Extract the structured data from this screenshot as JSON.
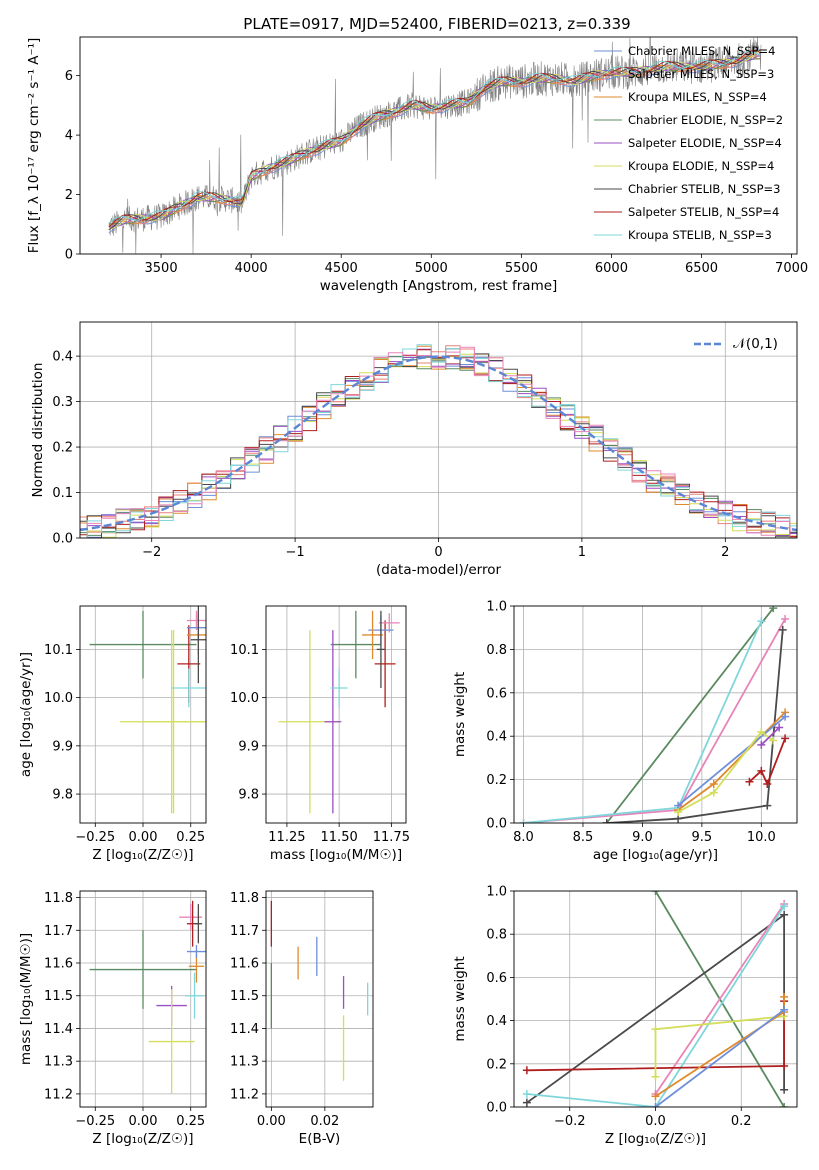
{
  "title": "PLATE=0917, MJD=52400, FIBERID=0213, z=0.339",
  "colors": [
    "#6f8fd8",
    "#e8807a",
    "#e08a2e",
    "#5a8a60",
    "#9b4fc4",
    "#d4de5a",
    "#4a4a4a",
    "#b01f1f",
    "#7fd6dc",
    "#e884b8"
  ],
  "chart_data": [
    {
      "id": "spectrum",
      "type": "line",
      "title": "PLATE=0917, MJD=52400, FIBERID=0213, z=0.339",
      "xlabel": "wavelength [Angstrom, rest frame]",
      "ylabel": "Flux [f_λ 10⁻¹⁷ erg cm⁻² s⁻¹ A⁻¹]",
      "xlim": [
        3050,
        7030
      ],
      "ylim": [
        0,
        7.3
      ],
      "xticks": [
        3500,
        4000,
        4500,
        5000,
        5500,
        6000,
        6500,
        7000
      ],
      "yticks": [
        0,
        2,
        4,
        6
      ],
      "legend": [
        "Chabrier MILES, N_SSP=4",
        "Salpeter MILES, N_SSP=3",
        "Kroupa MILES, N_SSP=4",
        "Chabrier ELODIE, N_SSP=2",
        "Salpeter ELODIE, N_SSP=4",
        "Kroupa ELODIE, N_SSP=4",
        "Chabrier STELIB, N_SSP=3",
        "Salpeter STELIB, N_SSP=4",
        "Kroupa STELIB, N_SSP=3"
      ],
      "legend_loc": "upper-right",
      "continuum": [
        [
          3210,
          0.9
        ],
        [
          3300,
          1.15
        ],
        [
          3400,
          1.2
        ],
        [
          3500,
          1.25
        ],
        [
          3600,
          1.6
        ],
        [
          3700,
          1.9
        ],
        [
          3800,
          1.9
        ],
        [
          3900,
          1.8
        ],
        [
          3950,
          1.7
        ],
        [
          4000,
          2.6
        ],
        [
          4100,
          2.9
        ],
        [
          4200,
          3.1
        ],
        [
          4300,
          3.4
        ],
        [
          4400,
          3.6
        ],
        [
          4500,
          3.8
        ],
        [
          4600,
          4.3
        ],
        [
          4700,
          4.6
        ],
        [
          4800,
          4.8
        ],
        [
          4900,
          5.0
        ],
        [
          5000,
          4.9
        ],
        [
          5100,
          5.0
        ],
        [
          5200,
          5.1
        ],
        [
          5300,
          5.6
        ],
        [
          5400,
          5.8
        ],
        [
          5500,
          5.8
        ],
        [
          5600,
          5.9
        ],
        [
          5700,
          5.9
        ],
        [
          5800,
          5.8
        ],
        [
          5900,
          6.0
        ],
        [
          6000,
          6.1
        ],
        [
          6100,
          6.1
        ],
        [
          6200,
          6.2
        ],
        [
          6300,
          6.3
        ],
        [
          6400,
          6.3
        ],
        [
          6500,
          6.3
        ],
        [
          6600,
          6.4
        ],
        [
          6700,
          6.5
        ],
        [
          6800,
          6.7
        ]
      ]
    },
    {
      "id": "residuals",
      "type": "histogram",
      "xlabel": "(data-model)/error",
      "ylabel": "Normed distribution",
      "xlim": [
        -2.5,
        2.5
      ],
      "ylim": [
        0,
        0.475
      ],
      "xticks": [
        -2,
        -1,
        0,
        1,
        2
      ],
      "yticks": [
        0.0,
        0.1,
        0.2,
        0.3,
        0.4
      ],
      "grid": true,
      "legend": [
        "𝒩(0,1)"
      ],
      "legend_loc": "upper-right",
      "reference": "normal(0,1)"
    },
    {
      "id": "age_vs_Z",
      "type": "errorbar",
      "xlabel": "Z [log₁₀(Z/Z☉)]",
      "ylabel": "age [log₁₀(age/yr)]",
      "xlim": [
        -0.33,
        0.33
      ],
      "ylim": [
        9.74,
        10.19
      ],
      "xticks": [
        -0.25,
        0.0,
        0.25
      ],
      "yticks": [
        9.8,
        9.9,
        10.0,
        10.1
      ],
      "grid": true,
      "points": [
        {
          "x": 0.0,
          "y": 10.11,
          "xerr": 0.28,
          "yerr": 0.07,
          "c": 3
        },
        {
          "x": 0.15,
          "y": 9.95,
          "xerr": 0.27,
          "yerr": 0.19,
          "c": 5
        },
        {
          "x": 0.24,
          "y": 10.07,
          "xerr": 0.06,
          "yerr": 0.08,
          "c": 7
        },
        {
          "x": 0.28,
          "y": 10.16,
          "xerr": 0.05,
          "yerr": 0.02,
          "c": 9
        },
        {
          "x": 0.29,
          "y": 10.145,
          "xerr": 0.06,
          "yerr": 0.03,
          "c": 0
        },
        {
          "x": 0.29,
          "y": 10.13,
          "xerr": 0.06,
          "yerr": 0.04,
          "c": 2
        },
        {
          "x": 0.29,
          "y": 10.12,
          "xerr": 0.04,
          "yerr": 0.09,
          "c": 6
        },
        {
          "x": 0.24,
          "y": 10.02,
          "xerr": 0.09,
          "yerr": 0.04,
          "c": 8
        },
        {
          "x": 0.16,
          "y": 9.95,
          "xerr": 0.16,
          "yerr": 0.19,
          "c": 5
        }
      ]
    },
    {
      "id": "age_vs_mass",
      "type": "errorbar",
      "xlabel": "mass [log₁₀(M/M☉)]",
      "ylabel": "",
      "xlim": [
        11.15,
        11.82
      ],
      "ylim": [
        9.74,
        10.19
      ],
      "xticks": [
        11.25,
        11.5,
        11.75
      ],
      "yticks": [
        9.8,
        9.9,
        10.0,
        10.1
      ],
      "grid": true,
      "points": [
        {
          "x": 11.58,
          "y": 10.11,
          "xerr": 0.12,
          "yerr": 0.07,
          "c": 3
        },
        {
          "x": 11.36,
          "y": 9.95,
          "xerr": 0.15,
          "yerr": 0.19,
          "c": 5
        },
        {
          "x": 11.47,
          "y": 9.95,
          "xerr": 0.04,
          "yerr": 0.19,
          "c": 4
        },
        {
          "x": 11.72,
          "y": 10.07,
          "xerr": 0.05,
          "yerr": 0.09,
          "c": 7
        },
        {
          "x": 11.74,
          "y": 10.155,
          "xerr": 0.05,
          "yerr": 0.02,
          "c": 9
        },
        {
          "x": 11.7,
          "y": 10.14,
          "xerr": 0.06,
          "yerr": 0.03,
          "c": 0
        },
        {
          "x": 11.66,
          "y": 10.13,
          "xerr": 0.05,
          "yerr": 0.05,
          "c": 2
        },
        {
          "x": 11.5,
          "y": 10.02,
          "xerr": 0.04,
          "yerr": 0.04,
          "c": 8
        },
        {
          "x": 11.7,
          "y": 10.1,
          "xerr": 0.02,
          "yerr": 0.08,
          "c": 6
        }
      ]
    },
    {
      "id": "mw_vs_age",
      "type": "line",
      "xlabel": "age [log₁₀(age/yr)]",
      "ylabel": "mass weight",
      "xlim": [
        7.92,
        10.3
      ],
      "ylim": [
        0,
        1
      ],
      "xticks": [
        8.0,
        8.5,
        9.0,
        9.5,
        10.0
      ],
      "yticks": [
        0.0,
        0.2,
        0.4,
        0.6,
        0.8,
        1.0
      ],
      "grid": true,
      "series": [
        {
          "c": 3,
          "pts": [
            [
              8.7,
              0.0
            ],
            [
              10.1,
              0.99
            ]
          ]
        },
        {
          "c": 9,
          "pts": [
            [
              8.0,
              0.0
            ],
            [
              9.3,
              0.06
            ],
            [
              10.2,
              0.94
            ]
          ]
        },
        {
          "c": 8,
          "pts": [
            [
              8.0,
              0.0
            ],
            [
              9.3,
              0.07
            ],
            [
              10.0,
              0.93
            ]
          ]
        },
        {
          "c": 6,
          "pts": [
            [
              8.7,
              0.0
            ],
            [
              9.3,
              0.02
            ],
            [
              10.05,
              0.08
            ],
            [
              10.18,
              0.89
            ]
          ]
        },
        {
          "c": 2,
          "pts": [
            [
              9.3,
              0.06
            ],
            [
              9.6,
              0.18
            ],
            [
              10.2,
              0.51
            ]
          ]
        },
        {
          "c": 0,
          "pts": [
            [
              9.3,
              0.08
            ],
            [
              10.2,
              0.49
            ]
          ]
        },
        {
          "c": 5,
          "pts": [
            [
              9.3,
              0.05
            ],
            [
              9.6,
              0.14
            ],
            [
              10.0,
              0.42
            ],
            [
              10.1,
              0.38
            ]
          ]
        },
        {
          "c": 7,
          "pts": [
            [
              9.9,
              0.19
            ],
            [
              10.0,
              0.24
            ],
            [
              10.05,
              0.18
            ],
            [
              10.2,
              0.39
            ]
          ]
        },
        {
          "c": 4,
          "pts": [
            [
              10.0,
              0.36
            ],
            [
              10.15,
              0.44
            ]
          ]
        }
      ]
    },
    {
      "id": "mass_vs_Z",
      "type": "errorbar",
      "xlabel": "Z [log₁₀(Z/Z☉)]",
      "ylabel": "mass [log₁₀(M/M☉)]",
      "xlim": [
        -0.33,
        0.33
      ],
      "ylim": [
        11.16,
        11.82
      ],
      "xticks": [
        -0.25,
        0.0,
        0.25
      ],
      "yticks": [
        11.2,
        11.3,
        11.4,
        11.5,
        11.6,
        11.7,
        11.8
      ],
      "grid": true,
      "points": [
        {
          "x": 0.0,
          "y": 11.58,
          "xerr": 0.28,
          "yerr": 0.12,
          "c": 3
        },
        {
          "x": 0.15,
          "y": 11.47,
          "xerr": 0.08,
          "yerr": 0.06,
          "c": 4
        },
        {
          "x": 0.15,
          "y": 11.36,
          "xerr": 0.12,
          "yerr": 0.16,
          "c": 5
        },
        {
          "x": 0.28,
          "y": 11.59,
          "xerr": 0.04,
          "yerr": 0.05,
          "c": 2
        },
        {
          "x": 0.28,
          "y": 11.635,
          "xerr": 0.05,
          "yerr": 0.02,
          "c": 0
        },
        {
          "x": 0.25,
          "y": 11.74,
          "xerr": 0.06,
          "yerr": 0.04,
          "c": 9
        },
        {
          "x": 0.26,
          "y": 11.72,
          "xerr": 0.03,
          "yerr": 0.07,
          "c": 7
        },
        {
          "x": 0.27,
          "y": 11.5,
          "xerr": 0.05,
          "yerr": 0.07,
          "c": 8
        },
        {
          "x": 0.29,
          "y": 11.72,
          "xerr": 0.02,
          "yerr": 0.06,
          "c": 6
        }
      ]
    },
    {
      "id": "mass_vs_ebv",
      "type": "errorbar",
      "xlabel": "E(B-V)",
      "ylabel": "",
      "xlim": [
        -0.002,
        0.038
      ],
      "ylim": [
        11.16,
        11.82
      ],
      "xticks": [
        0.0,
        0.02
      ],
      "yticks": [
        11.2,
        11.3,
        11.4,
        11.5,
        11.6,
        11.7,
        11.8
      ],
      "grid": true,
      "points": [
        {
          "x": 0.0,
          "y": 11.72,
          "xerr": 0,
          "yerr": 0.07,
          "c": 7
        },
        {
          "x": 0.0,
          "y": 11.5,
          "xerr": 0,
          "yerr": 0.1,
          "c": 3
        },
        {
          "x": 0.01,
          "y": 11.6,
          "xerr": 0,
          "yerr": 0.05,
          "c": 2
        },
        {
          "x": 0.017,
          "y": 11.62,
          "xerr": 0,
          "yerr": 0.06,
          "c": 0
        },
        {
          "x": 0.027,
          "y": 11.51,
          "xerr": 0,
          "yerr": 0.05,
          "c": 4
        },
        {
          "x": 0.027,
          "y": 11.34,
          "xerr": 0,
          "yerr": 0.1,
          "c": 5
        },
        {
          "x": 0.036,
          "y": 11.49,
          "xerr": 0,
          "yerr": 0.05,
          "c": 8
        }
      ]
    },
    {
      "id": "mw_vs_Z",
      "type": "line",
      "xlabel": "Z [log₁₀(Z/Z☉)]",
      "ylabel": "mass weight",
      "xlim": [
        -0.33,
        0.33
      ],
      "ylim": [
        0,
        1
      ],
      "xticks": [
        -0.2,
        0.0,
        0.2
      ],
      "yticks": [
        0.0,
        0.2,
        0.4,
        0.6,
        0.8,
        1.0
      ],
      "grid": true,
      "series": [
        {
          "c": 3,
          "pts": [
            [
              0.0,
              1.0
            ],
            [
              0.3,
              0.0
            ]
          ]
        },
        {
          "c": 6,
          "pts": [
            [
              -0.3,
              0.02
            ],
            [
              0.3,
              0.89
            ],
            [
              0.3,
              0.08
            ]
          ]
        },
        {
          "c": 9,
          "pts": [
            [
              0.0,
              0.06
            ],
            [
              0.3,
              0.94
            ]
          ]
        },
        {
          "c": 8,
          "pts": [
            [
              -0.3,
              0.06
            ],
            [
              0.0,
              0.0
            ],
            [
              0.3,
              0.93
            ]
          ]
        },
        {
          "c": 7,
          "pts": [
            [
              -0.3,
              0.17
            ],
            [
              0.3,
              0.19
            ],
            [
              0.3,
              0.49
            ]
          ]
        },
        {
          "c": 5,
          "pts": [
            [
              0.0,
              0.14
            ],
            [
              0.0,
              0.36
            ],
            [
              0.3,
              0.42
            ]
          ]
        },
        {
          "c": 2,
          "pts": [
            [
              0.0,
              0.05
            ],
            [
              0.3,
              0.44
            ],
            [
              0.3,
              0.51
            ]
          ]
        },
        {
          "c": 0,
          "pts": [
            [
              0.0,
              0.0
            ],
            [
              0.3,
              0.45
            ]
          ]
        }
      ]
    }
  ]
}
